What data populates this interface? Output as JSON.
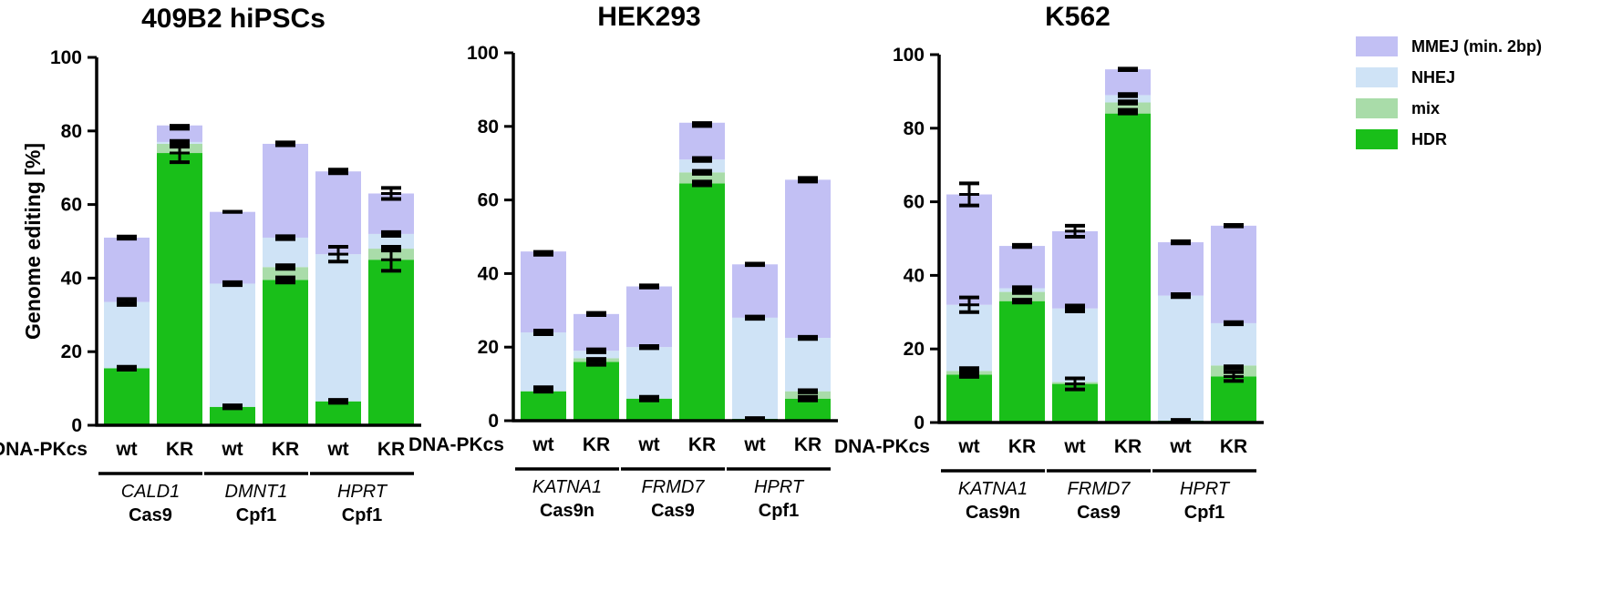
{
  "colors": {
    "MMEJ": "#c2c0f4",
    "NHEJ": "#cfe3f6",
    "mix": "#a9dca9",
    "HDR": "#19bf19",
    "axis": "#000000"
  },
  "chart_data": [
    {
      "type": "bar",
      "stacked": true,
      "title": "409B2 hiPSCs",
      "ylabel": "Genome editing [%]",
      "ylim": [
        0,
        100
      ],
      "yticks": [
        0,
        20,
        40,
        60,
        80,
        100
      ],
      "grid": false,
      "row_label": "DNA-PKcs",
      "categories": [
        "wt",
        "KR",
        "wt",
        "KR",
        "wt",
        "KR"
      ],
      "groups": [
        {
          "gene": "CALD1",
          "enzyme": "Cas9"
        },
        {
          "gene": "DMNT1",
          "enzyme": "Cpf1"
        },
        {
          "gene": "HPRT",
          "enzyme": "Cpf1"
        }
      ],
      "series": [
        {
          "name": "HDR",
          "values": [
            15.5,
            74,
            5,
            39.5,
            6.5,
            45
          ]
        },
        {
          "name": "mix",
          "values": [
            0,
            2.5,
            0,
            3.5,
            0,
            3
          ]
        },
        {
          "name": "NHEJ",
          "values": [
            18,
            0.5,
            33.5,
            8,
            40,
            4
          ]
        },
        {
          "name": "MMEJ",
          "values": [
            17.5,
            4.5,
            19.5,
            25.5,
            22.5,
            11
          ]
        }
      ],
      "error_bars": [
        [
          [
            15.5,
            0.4
          ],
          [
            33.5,
            0.8
          ],
          [
            51,
            0.3
          ]
        ],
        [
          [
            74,
            2.5
          ],
          [
            76.5,
            0.8
          ],
          [
            81,
            0.4
          ]
        ],
        [
          [
            5,
            0.4
          ],
          [
            38.5,
            0.4
          ],
          [
            58,
            0
          ]
        ],
        [
          [
            39.5,
            0.7
          ],
          [
            43,
            0.5
          ],
          [
            51,
            0.4
          ],
          [
            76.5,
            0.4
          ]
        ],
        [
          [
            6.5,
            0.4
          ],
          [
            46.5,
            2
          ],
          [
            69,
            0.5
          ]
        ],
        [
          [
            45,
            3
          ],
          [
            48,
            0.5
          ],
          [
            52,
            0.5
          ],
          [
            63,
            1.5
          ]
        ]
      ],
      "legend": "none"
    },
    {
      "type": "bar",
      "stacked": true,
      "title": "HEK293",
      "ylabel": "",
      "ylim": [
        0,
        100
      ],
      "yticks": [
        0,
        20,
        40,
        60,
        80,
        100
      ],
      "grid": false,
      "row_label": "DNA-PKcs",
      "categories": [
        "wt",
        "KR",
        "wt",
        "KR",
        "wt",
        "KR"
      ],
      "groups": [
        {
          "gene": "KATNA1",
          "enzyme": "Cas9n"
        },
        {
          "gene": "FRMD7",
          "enzyme": "Cas9"
        },
        {
          "gene": "HPRT",
          "enzyme": "Cpf1"
        }
      ],
      "series": [
        {
          "name": "HDR",
          "values": [
            8,
            16,
            6,
            64.5,
            0.5,
            6
          ]
        },
        {
          "name": "mix",
          "values": [
            0,
            1,
            0,
            3,
            0,
            2
          ]
        },
        {
          "name": "NHEJ",
          "values": [
            16,
            2,
            14,
            3.5,
            27.5,
            14.5
          ]
        },
        {
          "name": "MMEJ",
          "values": [
            22,
            10,
            16.5,
            10,
            14.5,
            43
          ]
        }
      ],
      "error_bars": [
        [
          [
            8.5,
            0.6
          ],
          [
            24,
            0.5
          ],
          [
            45.5,
            0.4
          ]
        ],
        [
          [
            16,
            0.8
          ],
          [
            19,
            0.4
          ],
          [
            29,
            0.3
          ]
        ],
        [
          [
            6,
            0.5
          ],
          [
            20,
            0.3
          ],
          [
            36.5,
            0.3
          ]
        ],
        [
          [
            64.5,
            0.5
          ],
          [
            67.5,
            0.4
          ],
          [
            71,
            0.4
          ],
          [
            80.5,
            0.4
          ]
        ],
        [
          [
            0.5,
            0.2
          ],
          [
            28,
            0.3
          ],
          [
            42.5,
            0.2
          ]
        ],
        [
          [
            6,
            0.5
          ],
          [
            8,
            0.3
          ],
          [
            22.5,
            0.3
          ],
          [
            65.5,
            0.5
          ]
        ]
      ],
      "legend": "none"
    },
    {
      "type": "bar",
      "stacked": true,
      "title": "K562",
      "ylabel": "",
      "ylim": [
        0,
        100
      ],
      "yticks": [
        0,
        20,
        40,
        60,
        80,
        100
      ],
      "grid": false,
      "row_label": "DNA-PKcs",
      "categories": [
        "wt",
        "KR",
        "wt",
        "KR",
        "wt",
        "KR"
      ],
      "groups": [
        {
          "gene": "KATNA1",
          "enzyme": "Cas9n"
        },
        {
          "gene": "FRMD7",
          "enzyme": "Cas9"
        },
        {
          "gene": "HPRT",
          "enzyme": "Cpf1"
        }
      ],
      "series": [
        {
          "name": "HDR",
          "values": [
            13,
            33,
            10.5,
            84,
            0.5,
            12.5
          ]
        },
        {
          "name": "mix",
          "values": [
            1,
            2.5,
            0.5,
            3,
            0,
            3
          ]
        },
        {
          "name": "NHEJ",
          "values": [
            18,
            1,
            20,
            2,
            34,
            11.5
          ]
        },
        {
          "name": "MMEJ",
          "values": [
            30,
            11.5,
            21,
            7,
            14.5,
            26.5
          ]
        }
      ],
      "error_bars": [
        [
          [
            13,
            0.6
          ],
          [
            14.5,
            0.3
          ],
          [
            32,
            2
          ],
          [
            62,
            3
          ]
        ],
        [
          [
            33,
            0.4
          ],
          [
            36,
            0.8
          ],
          [
            48,
            0.3
          ]
        ],
        [
          [
            10.5,
            1.5
          ],
          [
            31,
            0.8
          ],
          [
            52,
            1.5
          ]
        ],
        [
          [
            84.5,
            0.5
          ],
          [
            87,
            0.3
          ],
          [
            89,
            0.3
          ],
          [
            96,
            0.2
          ]
        ],
        [
          [
            0.5,
            0.2
          ],
          [
            34.5,
            0.4
          ],
          [
            49,
            0.3
          ]
        ],
        [
          [
            12.5,
            1.2
          ],
          [
            15,
            0.3
          ],
          [
            27,
            0.3
          ],
          [
            53.5,
            0.2
          ]
        ]
      ],
      "legend": "top-right"
    }
  ],
  "legend_items": [
    {
      "key": "MMEJ",
      "label": "MMEJ (min. 2bp)"
    },
    {
      "key": "NHEJ",
      "label": "NHEJ"
    },
    {
      "key": "mix",
      "label": "mix"
    },
    {
      "key": "HDR",
      "label": "HDR"
    }
  ]
}
